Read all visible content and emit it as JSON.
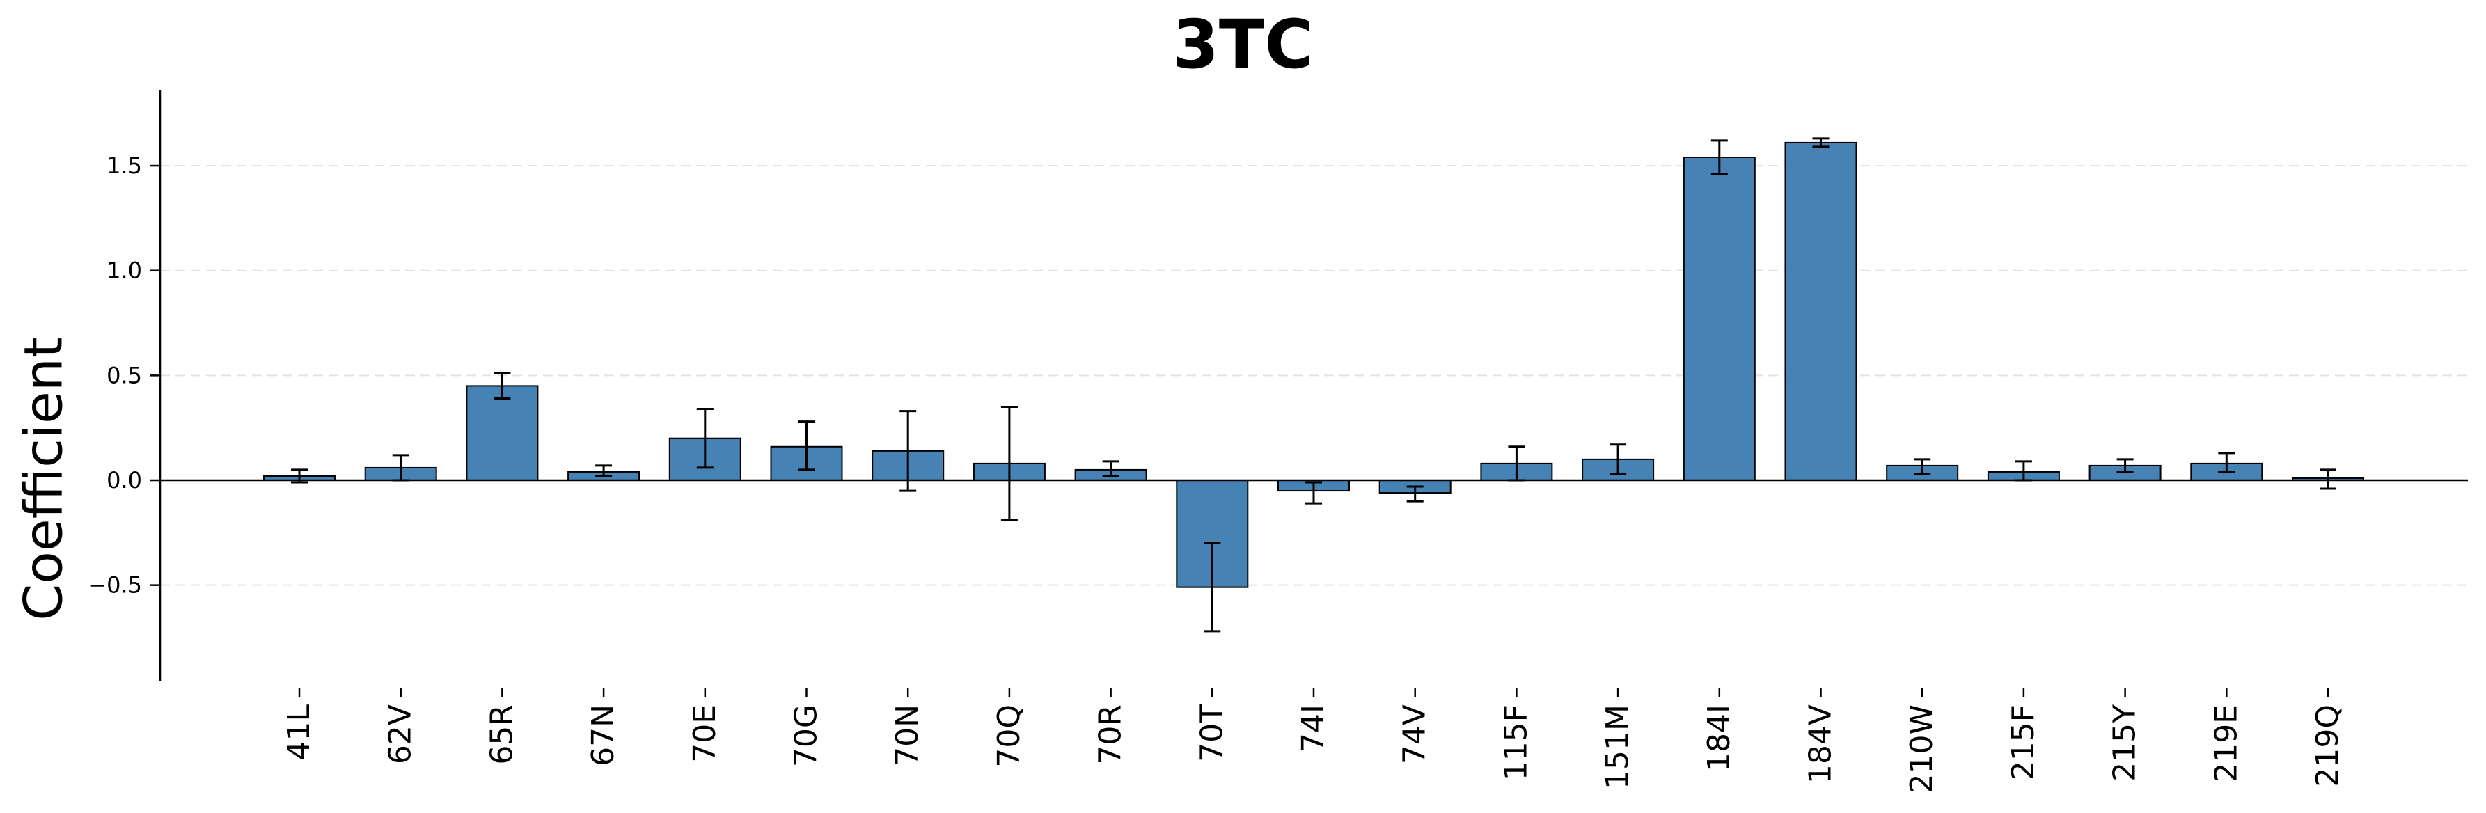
{
  "chart_data": {
    "type": "bar",
    "title": "3TC",
    "xlabel": "",
    "ylabel": "Coefficient",
    "categories": [
      "41L",
      "62V",
      "65R",
      "67N",
      "70E",
      "70G",
      "70N",
      "70Q",
      "70R",
      "70T",
      "74I",
      "74V",
      "115F",
      "151M",
      "184I",
      "184V",
      "210W",
      "215F",
      "215Y",
      "219E",
      "219Q"
    ],
    "values": [
      0.02,
      0.06,
      0.45,
      0.04,
      0.2,
      0.16,
      0.14,
      0.08,
      0.05,
      -0.51,
      -0.05,
      -0.06,
      0.08,
      0.1,
      1.54,
      1.61,
      0.07,
      0.04,
      0.07,
      0.08,
      0.01
    ],
    "error_low": [
      -0.01,
      0.0,
      0.39,
      0.02,
      0.06,
      0.05,
      -0.05,
      -0.19,
      0.02,
      -0.72,
      -0.11,
      -0.1,
      0.0,
      0.03,
      1.46,
      1.59,
      0.03,
      0.0,
      0.04,
      0.04,
      -0.04
    ],
    "error_high": [
      0.05,
      0.12,
      0.51,
      0.07,
      0.34,
      0.28,
      0.33,
      0.35,
      0.09,
      -0.3,
      -0.01,
      -0.03,
      0.16,
      0.17,
      1.62,
      1.63,
      0.1,
      0.09,
      0.1,
      0.13,
      0.05
    ],
    "yticks": [
      -0.5,
      0.0,
      0.5,
      1.0,
      1.5
    ],
    "ytick_labels": [
      "−0.5",
      "0.0",
      "0.5",
      "1.0",
      "1.5"
    ],
    "ylim": [
      -0.95,
      1.85
    ],
    "grid": "horizontal dashed",
    "bar_color": "#4682B4",
    "edge_color": "#000000"
  }
}
